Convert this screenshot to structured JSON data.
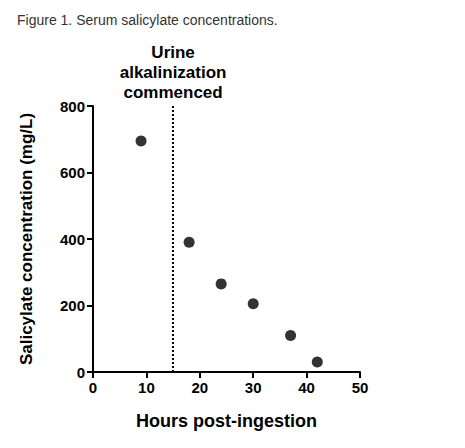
{
  "chart_data": {
    "type": "scatter",
    "title": "Figure 1. Serum salicylate concentrations.",
    "x_label": "Hours post-ingestion",
    "y_label": "Salicylate concentration (mg/L)",
    "x": [
      9,
      18,
      24,
      30,
      37,
      42
    ],
    "values": [
      695,
      390,
      265,
      205,
      110,
      30
    ],
    "color": "#000000",
    "marker": "circle",
    "xlim": [
      0,
      50
    ],
    "xticks": [
      0,
      10,
      20,
      30,
      40,
      50
    ],
    "ylim": [
      0,
      800
    ],
    "yticks": [
      0,
      200,
      400,
      600,
      800
    ],
    "grid": false,
    "annotations": [
      {
        "text": "Urine\nalkalinization\ncommenced",
        "x": 15,
        "line_style": "dotted"
      }
    ]
  }
}
